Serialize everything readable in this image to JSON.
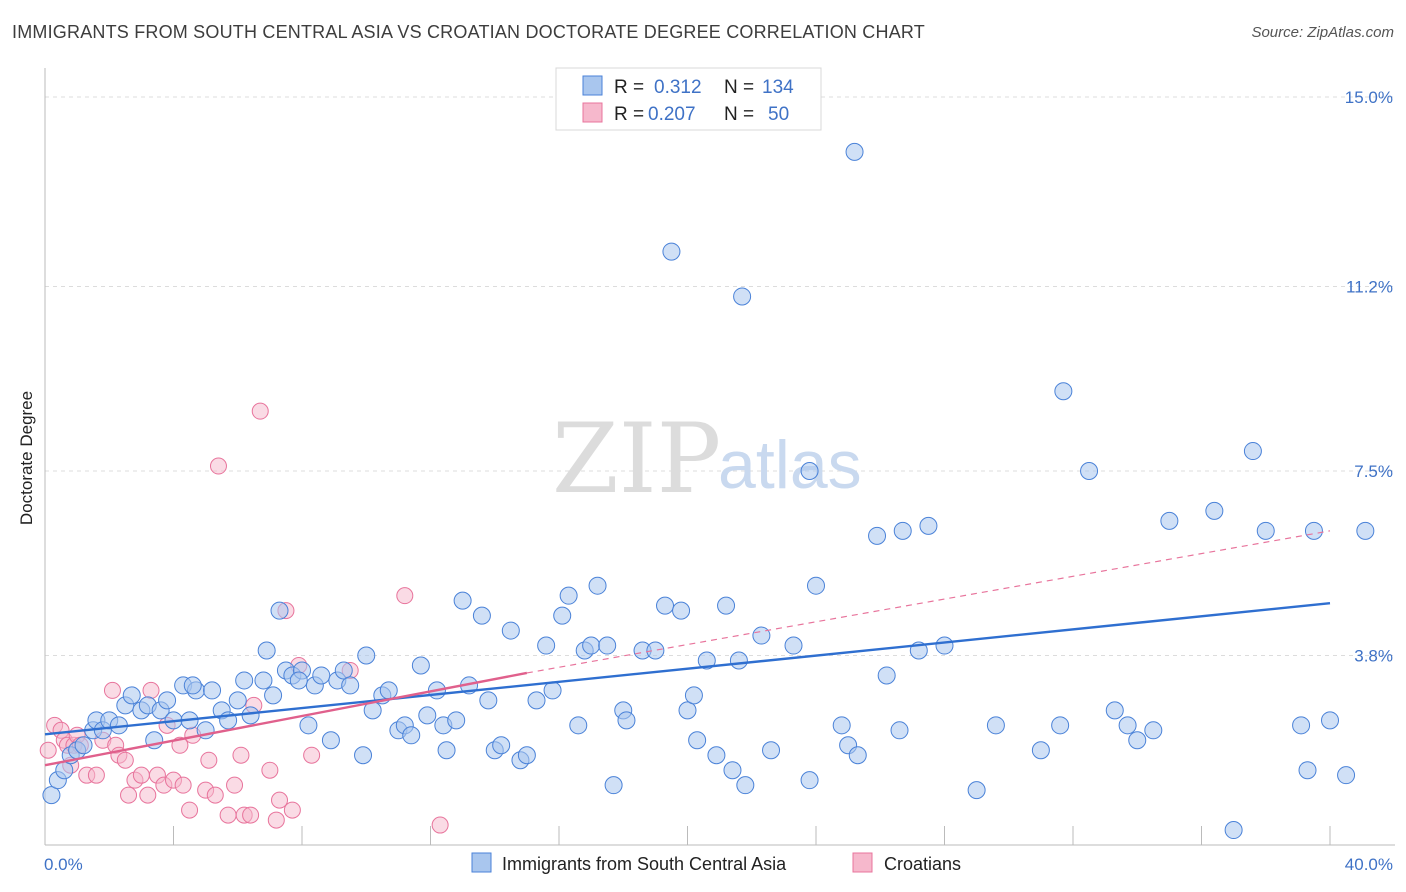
{
  "title": "IMMIGRANTS FROM SOUTH CENTRAL ASIA VS CROATIAN DOCTORATE DEGREE CORRELATION CHART",
  "source": "Source: ZipAtlas.com",
  "watermark": {
    "zip": "ZIP",
    "atlas": "atlas"
  },
  "colors": {
    "blue": "#4a82d8",
    "blue_fill": "#a9c6ee",
    "pink": "#e8749c",
    "pink_fill": "#f6b8cc",
    "tick": "#3f72c6"
  },
  "legend": {
    "rows": [
      {
        "r_label": "R = ",
        "r_value": "0.312",
        "n_label": "N = ",
        "n_value": "134"
      },
      {
        "r_label": "R = ",
        "r_value": "0.207",
        "n_label": "N = ",
        "n_value": "50"
      }
    ]
  },
  "chart_data": {
    "type": "scatter",
    "xlabel": "",
    "ylabel": "Doctorate Degree",
    "xlim": [
      0,
      40
    ],
    "ylim": [
      0,
      15
    ],
    "x_tick_labels": [
      "0.0%",
      "40.0%"
    ],
    "y_ticks": [
      3.8,
      7.5,
      11.2,
      15.0
    ],
    "y_tick_labels": [
      "3.8%",
      "7.5%",
      "11.2%",
      "15.0%"
    ],
    "series": [
      {
        "name": "Immigrants from South Central Asia",
        "R": 0.312,
        "N": 134,
        "trend": {
          "x": [
            0,
            40
          ],
          "y": [
            2.22,
            4.85
          ]
        },
        "points": [
          [
            0.2,
            1.0
          ],
          [
            0.4,
            1.3
          ],
          [
            0.6,
            1.5
          ],
          [
            0.8,
            1.8
          ],
          [
            1.0,
            1.9
          ],
          [
            1.2,
            2.0
          ],
          [
            1.5,
            2.3
          ],
          [
            1.6,
            2.5
          ],
          [
            1.8,
            2.3
          ],
          [
            2.0,
            2.5
          ],
          [
            2.3,
            2.4
          ],
          [
            2.5,
            2.8
          ],
          [
            2.7,
            3.0
          ],
          [
            3.0,
            2.7
          ],
          [
            3.2,
            2.8
          ],
          [
            3.4,
            2.1
          ],
          [
            3.6,
            2.7
          ],
          [
            3.8,
            2.9
          ],
          [
            4.0,
            2.5
          ],
          [
            4.3,
            3.2
          ],
          [
            4.5,
            2.5
          ],
          [
            4.7,
            3.1
          ],
          [
            5.0,
            2.3
          ],
          [
            5.2,
            3.1
          ],
          [
            5.5,
            2.7
          ],
          [
            5.7,
            2.5
          ],
          [
            6.0,
            2.9
          ],
          [
            6.2,
            3.3
          ],
          [
            6.4,
            2.6
          ],
          [
            6.8,
            3.3
          ],
          [
            6.9,
            3.9
          ],
          [
            7.1,
            3.0
          ],
          [
            7.3,
            4.7
          ],
          [
            7.5,
            3.5
          ],
          [
            7.7,
            3.4
          ],
          [
            8.0,
            3.5
          ],
          [
            8.2,
            2.4
          ],
          [
            8.4,
            3.2
          ],
          [
            8.6,
            3.4
          ],
          [
            8.9,
            2.1
          ],
          [
            9.1,
            3.3
          ],
          [
            9.3,
            3.5
          ],
          [
            9.5,
            3.2
          ],
          [
            9.9,
            1.8
          ],
          [
            10.0,
            3.8
          ],
          [
            10.2,
            2.7
          ],
          [
            10.5,
            3.0
          ],
          [
            10.7,
            3.1
          ],
          [
            11.0,
            2.3
          ],
          [
            11.2,
            2.4
          ],
          [
            11.4,
            2.2
          ],
          [
            11.7,
            3.6
          ],
          [
            11.9,
            2.6
          ],
          [
            12.2,
            3.1
          ],
          [
            12.4,
            2.4
          ],
          [
            12.8,
            2.5
          ],
          [
            13.0,
            4.9
          ],
          [
            13.2,
            3.2
          ],
          [
            13.6,
            4.6
          ],
          [
            13.8,
            2.9
          ],
          [
            14.0,
            1.9
          ],
          [
            14.2,
            2.0
          ],
          [
            14.5,
            4.3
          ],
          [
            14.8,
            1.7
          ],
          [
            15.0,
            1.8
          ],
          [
            15.3,
            2.9
          ],
          [
            15.6,
            4.0
          ],
          [
            15.8,
            3.1
          ],
          [
            16.1,
            4.6
          ],
          [
            16.3,
            5.0
          ],
          [
            16.6,
            2.4
          ],
          [
            16.8,
            3.9
          ],
          [
            17.0,
            4.0
          ],
          [
            17.2,
            5.2
          ],
          [
            17.5,
            4.0
          ],
          [
            17.7,
            1.2
          ],
          [
            18.0,
            2.7
          ],
          [
            18.1,
            2.5
          ],
          [
            18.6,
            3.9
          ],
          [
            19.0,
            3.9
          ],
          [
            19.3,
            4.8
          ],
          [
            19.8,
            4.7
          ],
          [
            20.0,
            2.7
          ],
          [
            20.2,
            3.0
          ],
          [
            20.3,
            2.1
          ],
          [
            20.6,
            3.7
          ],
          [
            20.9,
            1.8
          ],
          [
            21.2,
            4.8
          ],
          [
            21.4,
            1.5
          ],
          [
            21.6,
            3.7
          ],
          [
            21.8,
            1.2
          ],
          [
            22.3,
            4.2
          ],
          [
            22.6,
            1.9
          ],
          [
            23.3,
            4.0
          ],
          [
            23.8,
            1.3
          ],
          [
            24.0,
            5.2
          ],
          [
            24.8,
            2.4
          ],
          [
            25.0,
            2.0
          ],
          [
            25.3,
            1.8
          ],
          [
            25.9,
            6.2
          ],
          [
            26.2,
            3.4
          ],
          [
            26.6,
            2.3
          ],
          [
            26.7,
            6.3
          ],
          [
            27.5,
            6.4
          ],
          [
            27.2,
            3.9
          ],
          [
            28.0,
            4.0
          ],
          [
            29.0,
            1.1
          ],
          [
            29.6,
            2.4
          ],
          [
            31.0,
            1.9
          ],
          [
            31.6,
            2.4
          ],
          [
            32.5,
            7.5
          ],
          [
            33.3,
            2.7
          ],
          [
            34.0,
            2.1
          ],
          [
            34.5,
            2.3
          ],
          [
            35.0,
            6.5
          ],
          [
            36.4,
            6.7
          ],
          [
            37.0,
            0.3
          ],
          [
            37.6,
            7.9
          ],
          [
            38.0,
            6.3
          ],
          [
            39.1,
            2.4
          ],
          [
            39.3,
            1.5
          ],
          [
            39.5,
            6.3
          ],
          [
            40.0,
            2.5
          ],
          [
            40.5,
            1.4
          ],
          [
            41.1,
            6.3
          ],
          [
            19.5,
            11.9
          ],
          [
            21.7,
            11.0
          ],
          [
            25.2,
            13.9
          ],
          [
            23.8,
            7.5
          ],
          [
            31.7,
            9.1
          ],
          [
            4.6,
            3.2
          ],
          [
            7.9,
            3.3
          ],
          [
            12.5,
            1.9
          ],
          [
            33.7,
            2.4
          ]
        ]
      },
      {
        "name": "Croatians",
        "R": 0.207,
        "N": 50,
        "trend": {
          "x": [
            0,
            15
          ],
          "y": [
            1.6,
            3.45
          ]
        },
        "trend_ext": {
          "x": [
            15,
            40
          ],
          "y": [
            3.45,
            6.3
          ]
        },
        "points": [
          [
            0.1,
            1.9
          ],
          [
            0.3,
            2.4
          ],
          [
            0.5,
            2.3
          ],
          [
            0.6,
            2.1
          ],
          [
            0.7,
            2.0
          ],
          [
            0.8,
            1.6
          ],
          [
            0.9,
            2.0
          ],
          [
            1.0,
            2.2
          ],
          [
            1.1,
            2.0
          ],
          [
            1.3,
            1.4
          ],
          [
            1.6,
            1.4
          ],
          [
            1.8,
            2.1
          ],
          [
            2.1,
            3.1
          ],
          [
            2.2,
            2.0
          ],
          [
            2.3,
            1.8
          ],
          [
            2.5,
            1.7
          ],
          [
            2.6,
            1.0
          ],
          [
            2.8,
            1.3
          ],
          [
            3.0,
            1.4
          ],
          [
            3.2,
            1.0
          ],
          [
            3.3,
            3.1
          ],
          [
            3.5,
            1.4
          ],
          [
            3.7,
            1.2
          ],
          [
            3.8,
            2.4
          ],
          [
            4.0,
            1.3
          ],
          [
            4.2,
            2.0
          ],
          [
            4.3,
            1.2
          ],
          [
            4.5,
            0.7
          ],
          [
            4.6,
            2.2
          ],
          [
            5.0,
            1.1
          ],
          [
            5.1,
            1.7
          ],
          [
            5.3,
            1.0
          ],
          [
            5.4,
            7.6
          ],
          [
            5.7,
            0.6
          ],
          [
            5.9,
            1.2
          ],
          [
            6.1,
            1.8
          ],
          [
            6.2,
            0.6
          ],
          [
            6.4,
            0.6
          ],
          [
            6.5,
            2.8
          ],
          [
            6.7,
            8.7
          ],
          [
            7.0,
            1.5
          ],
          [
            7.2,
            0.5
          ],
          [
            7.3,
            0.9
          ],
          [
            7.5,
            4.7
          ],
          [
            7.7,
            0.7
          ],
          [
            7.9,
            3.6
          ],
          [
            8.3,
            1.8
          ],
          [
            9.5,
            3.5
          ],
          [
            11.2,
            5.0
          ],
          [
            12.3,
            0.4
          ]
        ]
      }
    ]
  },
  "bottom_legend": [
    "Immigrants from South Central Asia",
    "Croatians"
  ]
}
